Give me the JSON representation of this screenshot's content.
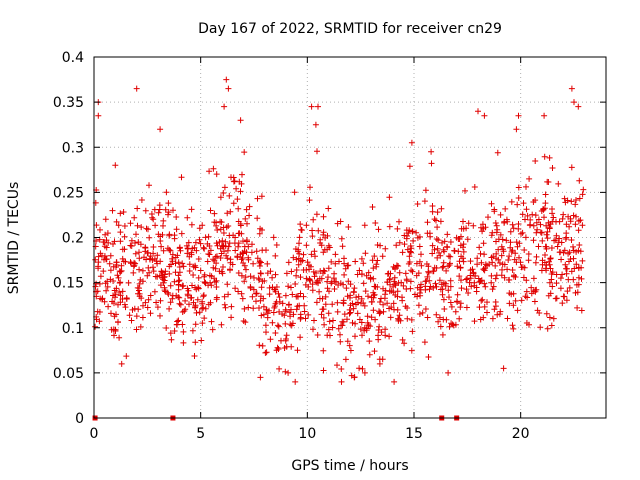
{
  "chart_data": {
    "type": "scatter",
    "title": "Day 167 of 2022, SRMTID for receiver cn29",
    "xlabel": "GPS time / hours",
    "ylabel": "SRMTID / TECUs",
    "xlim": [
      0,
      24
    ],
    "ylim": [
      0,
      0.4
    ],
    "x_ticks": [
      0,
      5,
      10,
      15,
      20
    ],
    "x_tick_labels": [
      "0",
      "5",
      "10",
      "15",
      "20"
    ],
    "y_ticks": [
      0,
      0.05,
      0.1,
      0.15,
      0.2,
      0.25,
      0.3,
      0.35,
      0.4
    ],
    "y_tick_labels": [
      "0",
      "0.05",
      "0.1",
      "0.15",
      "0.2",
      "0.25",
      "0.3",
      "0.35",
      "0.4"
    ],
    "grid": true,
    "marker": "plus",
    "series_color": "#e00000",
    "data_x_range": [
      0.0,
      22.95
    ],
    "zero_value_x": [
      0.05,
      3.7,
      16.3,
      17.0
    ],
    "profile": [
      {
        "x": 0.0,
        "y": 0.17
      },
      {
        "x": 1.0,
        "y": 0.14
      },
      {
        "x": 2.0,
        "y": 0.17
      },
      {
        "x": 3.0,
        "y": 0.18
      },
      {
        "x": 4.0,
        "y": 0.15
      },
      {
        "x": 5.0,
        "y": 0.14
      },
      {
        "x": 6.0,
        "y": 0.19
      },
      {
        "x": 7.0,
        "y": 0.18
      },
      {
        "x": 8.0,
        "y": 0.14
      },
      {
        "x": 9.0,
        "y": 0.12
      },
      {
        "x": 10.0,
        "y": 0.16
      },
      {
        "x": 11.0,
        "y": 0.14
      },
      {
        "x": 12.0,
        "y": 0.12
      },
      {
        "x": 13.0,
        "y": 0.13
      },
      {
        "x": 14.0,
        "y": 0.14
      },
      {
        "x": 15.0,
        "y": 0.16
      },
      {
        "x": 16.0,
        "y": 0.17
      },
      {
        "x": 17.0,
        "y": 0.15
      },
      {
        "x": 18.0,
        "y": 0.17
      },
      {
        "x": 19.0,
        "y": 0.17
      },
      {
        "x": 20.0,
        "y": 0.17
      },
      {
        "x": 21.0,
        "y": 0.18
      },
      {
        "x": 22.0,
        "y": 0.19
      },
      {
        "x": 23.0,
        "y": 0.18
      }
    ],
    "highlights": [
      {
        "x": 0.2,
        "y": 0.35
      },
      {
        "x": 0.2,
        "y": 0.335
      },
      {
        "x": 1.0,
        "y": 0.28
      },
      {
        "x": 2.0,
        "y": 0.365
      },
      {
        "x": 3.1,
        "y": 0.32
      },
      {
        "x": 6.2,
        "y": 0.375
      },
      {
        "x": 6.3,
        "y": 0.365
      },
      {
        "x": 6.1,
        "y": 0.345
      },
      {
        "x": 10.2,
        "y": 0.345
      },
      {
        "x": 10.5,
        "y": 0.345
      },
      {
        "x": 10.4,
        "y": 0.325
      },
      {
        "x": 14.9,
        "y": 0.305
      },
      {
        "x": 15.8,
        "y": 0.295
      },
      {
        "x": 18.0,
        "y": 0.34
      },
      {
        "x": 18.3,
        "y": 0.335
      },
      {
        "x": 19.9,
        "y": 0.335
      },
      {
        "x": 19.8,
        "y": 0.32
      },
      {
        "x": 21.1,
        "y": 0.335
      },
      {
        "x": 22.4,
        "y": 0.365
      },
      {
        "x": 22.5,
        "y": 0.35
      },
      {
        "x": 22.7,
        "y": 0.345
      },
      {
        "x": 7.8,
        "y": 0.045
      },
      {
        "x": 11.6,
        "y": 0.04
      },
      {
        "x": 12.2,
        "y": 0.045
      },
      {
        "x": 12.7,
        "y": 0.05
      },
      {
        "x": 16.6,
        "y": 0.05
      },
      {
        "x": 1.3,
        "y": 0.06
      },
      {
        "x": 9.1,
        "y": 0.05
      },
      {
        "x": 13.4,
        "y": 0.06
      },
      {
        "x": 19.2,
        "y": 0.055
      }
    ]
  }
}
